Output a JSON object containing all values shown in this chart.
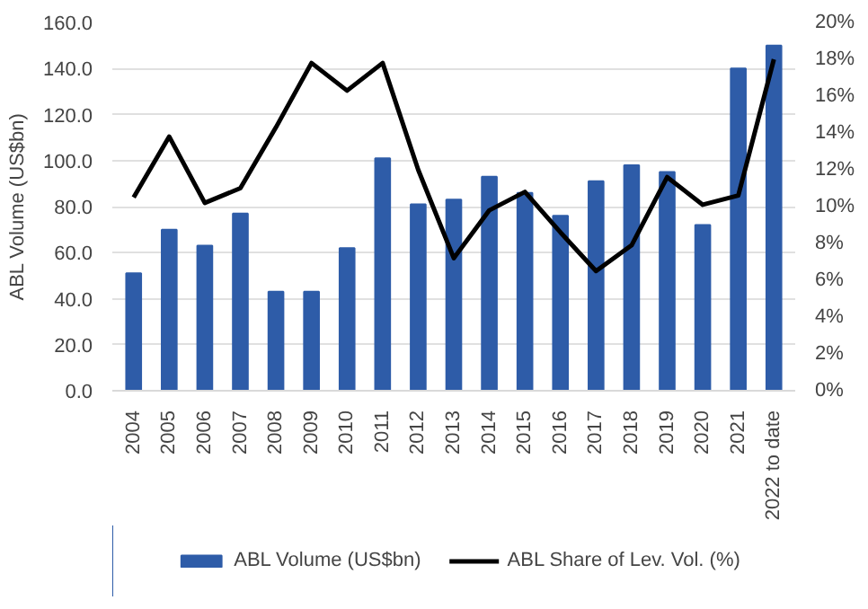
{
  "chart_data": {
    "type": "bar",
    "ylabel": "ABL Volume (US$bn)",
    "categories": [
      "2004",
      "2005",
      "2006",
      "2007",
      "2008",
      "2009",
      "2010",
      "2011",
      "2012",
      "2013",
      "2014",
      "2015",
      "2016",
      "2017",
      "2018",
      "2019",
      "2020",
      "2021",
      "2022 to date"
    ],
    "series": [
      {
        "name": "ABL Volume (US$bn)",
        "color": "#2e5ca8",
        "values": [
          51,
          70,
          63,
          77,
          43,
          43,
          62,
          101,
          81,
          83,
          93,
          86,
          76,
          91,
          98,
          95,
          72,
          140,
          150
        ]
      },
      {
        "name": "ABL Share of Lev. Vol. (%)",
        "type": "line",
        "axis": "y2",
        "color": "#000000",
        "values": [
          10.5,
          13.8,
          10.2,
          11.0,
          14.3,
          17.8,
          16.3,
          17.8,
          12.0,
          7.2,
          9.8,
          10.8,
          8.6,
          6.5,
          7.9,
          11.6,
          10.1,
          10.6,
          18.0
        ]
      }
    ],
    "ylim": [
      0,
      160
    ],
    "yticks": [
      {
        "value": 0,
        "label": "0.0"
      },
      {
        "value": 20,
        "label": "20.0"
      },
      {
        "value": 40,
        "label": "40.0"
      },
      {
        "value": 60,
        "label": "60.0"
      },
      {
        "value": 80,
        "label": "80.0"
      },
      {
        "value": 100,
        "label": "100.0"
      },
      {
        "value": 120,
        "label": "120.0"
      },
      {
        "value": 140,
        "label": "140.0"
      },
      {
        "value": 160,
        "label": "160.0"
      }
    ],
    "y2lim": [
      0,
      20
    ],
    "y2ticks": [
      {
        "value": 0,
        "label": "0%"
      },
      {
        "value": 2,
        "label": "2%"
      },
      {
        "value": 4,
        "label": "4%"
      },
      {
        "value": 6,
        "label": "6%"
      },
      {
        "value": 8,
        "label": "8%"
      },
      {
        "value": 10,
        "label": "10%"
      },
      {
        "value": 12,
        "label": "12%"
      },
      {
        "value": 14,
        "label": "14%"
      },
      {
        "value": 16,
        "label": "16%"
      },
      {
        "value": 18,
        "label": "18%"
      },
      {
        "value": 20,
        "label": "20%"
      }
    ],
    "grid": "y",
    "legend": "bottom",
    "line_style": "solid"
  }
}
